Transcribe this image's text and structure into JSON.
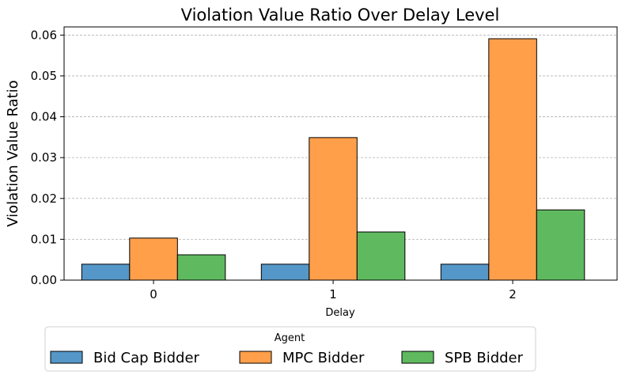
{
  "chart_data": {
    "type": "bar",
    "title": "Violation Value Ratio Over Delay Level",
    "xlabel": "Delay",
    "ylabel": "Violation Value Ratio",
    "categories": [
      "0",
      "1",
      "2"
    ],
    "ylim": [
      0,
      0.062
    ],
    "yticks": [
      0.0,
      0.01,
      0.02,
      0.03,
      0.04,
      0.05,
      0.06
    ],
    "ytick_labels": [
      "0.00",
      "0.01",
      "0.02",
      "0.03",
      "0.04",
      "0.05",
      "0.06"
    ],
    "grid": "horizontal dashed",
    "legend": {
      "title": "Agent",
      "placement": "bottom-center, below plot"
    },
    "series": [
      {
        "name": "Bid Cap Bidder",
        "color": "#5597c8",
        "values": [
          0.0039,
          0.0039,
          0.0039
        ]
      },
      {
        "name": "MPC Bidder",
        "color": "#ff9f4a",
        "values": [
          0.0103,
          0.0349,
          0.0591
        ]
      },
      {
        "name": "SPB Bidder",
        "color": "#5fb95f",
        "values": [
          0.0062,
          0.0118,
          0.0172
        ]
      }
    ]
  }
}
